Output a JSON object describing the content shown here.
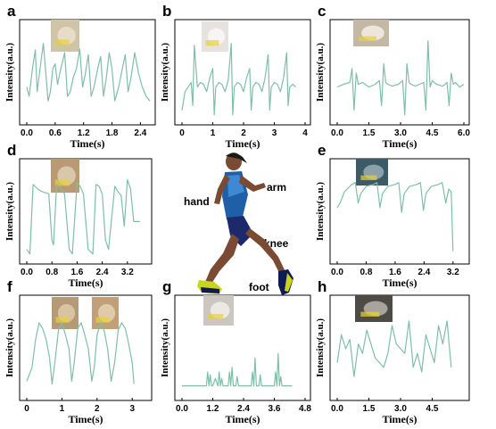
{
  "chart_data": [
    {
      "panel": "a",
      "type": "line",
      "xlabel": "Time(s)",
      "ylabel": "Intensity(a.u.)",
      "xticks": [
        "0.0",
        "0.6",
        "1.2",
        "1.8",
        "2.4"
      ],
      "xlim": [
        0,
        2.6
      ],
      "ylim": [
        0,
        1
      ],
      "series": [
        {
          "color": "#7fbfa8",
          "x": [
            0,
            0.05,
            0.12,
            0.18,
            0.22,
            0.28,
            0.35,
            0.45,
            0.5,
            0.55,
            0.6,
            0.65,
            0.72,
            0.8,
            0.86,
            0.92,
            0.98,
            1.05,
            1.12,
            1.18,
            1.24,
            1.3,
            1.36,
            1.42,
            1.5,
            1.56,
            1.62,
            1.68,
            1.74,
            1.8,
            1.86,
            1.94,
            2.02,
            2.08,
            2.14,
            2.2,
            2.28,
            2.36,
            2.44,
            2.52,
            2.6
          ],
          "y": [
            0.35,
            0.25,
            0.55,
            0.75,
            0.3,
            0.55,
            0.82,
            0.2,
            0.3,
            0.55,
            0.6,
            0.38,
            0.55,
            0.72,
            0.25,
            0.3,
            0.45,
            0.55,
            0.76,
            0.35,
            0.5,
            0.7,
            0.25,
            0.35,
            0.55,
            0.68,
            0.25,
            0.45,
            0.72,
            0.55,
            0.2,
            0.35,
            0.55,
            0.7,
            0.3,
            0.45,
            0.72,
            0.5,
            0.35,
            0.25,
            0.2
          ]
        }
      ]
    },
    {
      "panel": "b",
      "type": "line",
      "xlabel": "Time(s)",
      "ylabel": "Intensity(a.u.)",
      "xticks": [
        "0",
        "1",
        "2",
        "3",
        "4"
      ],
      "xlim": [
        0,
        4
      ],
      "ylim": [
        0,
        1
      ],
      "series": [
        {
          "color": "#7fbfa8",
          "x": [
            0,
            0.1,
            0.2,
            0.3,
            0.35,
            0.4,
            0.5,
            0.6,
            0.7,
            0.8,
            0.9,
            1.0,
            1.05,
            1.1,
            1.2,
            1.3,
            1.4,
            1.5,
            1.6,
            1.65,
            1.7,
            1.8,
            1.9,
            2.0,
            2.1,
            2.2,
            2.25,
            2.3,
            2.4,
            2.5,
            2.6,
            2.7,
            2.8,
            2.85,
            2.9,
            3.0,
            3.1,
            3.2,
            3.3,
            3.4,
            3.45,
            3.5,
            3.6,
            3.7
          ],
          "y": [
            0.1,
            0.3,
            0.35,
            0.4,
            0.15,
            0.8,
            0.35,
            0.4,
            0.38,
            0.3,
            0.45,
            0.55,
            0.05,
            0.35,
            0.4,
            0.38,
            0.3,
            0.42,
            0.82,
            0.05,
            0.35,
            0.4,
            0.38,
            0.3,
            0.45,
            0.55,
            0.1,
            0.35,
            0.4,
            0.38,
            0.3,
            0.45,
            0.7,
            0.1,
            0.35,
            0.4,
            0.38,
            0.3,
            0.45,
            0.72,
            0.15,
            0.35,
            0.38,
            0.35
          ]
        }
      ]
    },
    {
      "panel": "c",
      "type": "line",
      "xlabel": "Time(s)",
      "ylabel": "Intensity(a.u.)",
      "xticks": [
        "0.0",
        "1.5",
        "3.0",
        "4.5",
        "6.0"
      ],
      "xlim": [
        0,
        6
      ],
      "ylim": [
        0,
        1
      ],
      "series": [
        {
          "color": "#7fbfa8",
          "x": [
            0,
            0.3,
            0.6,
            0.7,
            0.8,
            0.9,
            1.0,
            1.2,
            1.5,
            1.8,
            2.0,
            2.1,
            2.2,
            2.3,
            2.4,
            2.6,
            2.9,
            3.1,
            3.2,
            3.3,
            3.4,
            3.5,
            3.7,
            3.9,
            4.1,
            4.2,
            4.3,
            4.4,
            4.5,
            4.7,
            5.0,
            5.2,
            5.3,
            5.4,
            5.5,
            5.6,
            5.8,
            6.0
          ],
          "y": [
            0.35,
            0.38,
            0.4,
            0.55,
            0.1,
            0.5,
            0.38,
            0.4,
            0.35,
            0.38,
            0.42,
            0.15,
            0.6,
            0.4,
            0.38,
            0.36,
            0.38,
            0.42,
            0.05,
            0.6,
            0.4,
            0.38,
            0.36,
            0.38,
            0.4,
            0.1,
            0.85,
            0.35,
            0.42,
            0.38,
            0.36,
            0.4,
            0.15,
            0.5,
            0.38,
            0.4,
            0.35,
            0.38
          ]
        }
      ]
    },
    {
      "panel": "d",
      "type": "line",
      "xlabel": "Time(s)",
      "ylabel": "Intensity(a.u.)",
      "xticks": [
        "0.0",
        "0.8",
        "1.6",
        "2.4",
        "3.2"
      ],
      "xlim": [
        0,
        3.8
      ],
      "ylim": [
        0,
        1
      ],
      "series": [
        {
          "color": "#7fbfa8",
          "x": [
            0,
            0.1,
            0.2,
            0.35,
            0.5,
            0.7,
            0.8,
            0.85,
            0.95,
            1.1,
            1.2,
            1.35,
            1.45,
            1.6,
            1.7,
            1.8,
            1.95,
            2.1,
            2.2,
            2.3,
            2.4,
            2.5,
            2.6,
            2.8,
            2.9,
            3.0,
            3.1,
            3.2,
            3.3,
            3.4,
            3.5,
            3.6
          ],
          "y": [
            0.1,
            0.05,
            0.8,
            0.75,
            0.72,
            0.7,
            0.2,
            0.15,
            0.8,
            0.75,
            0.7,
            0.1,
            0.05,
            0.82,
            0.78,
            0.7,
            0.1,
            0.05,
            0.8,
            0.78,
            0.7,
            0.2,
            0.1,
            0.78,
            0.72,
            0.68,
            0.35,
            0.85,
            0.75,
            0.4,
            0.4,
            0.4
          ]
        }
      ]
    },
    {
      "panel": "e",
      "type": "line",
      "xlabel": "Time(s)",
      "ylabel": "Intensity(a.u.)",
      "xticks": [
        "0.0",
        "0.8",
        "1.6",
        "2.4",
        "3.2"
      ],
      "xlim": [
        0,
        3.5
      ],
      "ylim": [
        0,
        1
      ],
      "series": [
        {
          "color": "#7fbfa8",
          "x": [
            0,
            0.08,
            0.2,
            0.4,
            0.5,
            0.58,
            0.65,
            0.8,
            1.0,
            1.1,
            1.18,
            1.25,
            1.4,
            1.6,
            1.7,
            1.78,
            1.85,
            2.0,
            2.2,
            2.3,
            2.38,
            2.45,
            2.6,
            2.8,
            2.9,
            3.0,
            3.08,
            3.15,
            3.2
          ],
          "y": [
            0.55,
            0.6,
            0.72,
            0.8,
            0.82,
            0.6,
            0.7,
            0.78,
            0.8,
            0.82,
            0.55,
            0.7,
            0.78,
            0.8,
            0.82,
            0.5,
            0.7,
            0.78,
            0.8,
            0.82,
            0.52,
            0.7,
            0.78,
            0.8,
            0.82,
            0.6,
            0.75,
            0.72,
            0.08
          ]
        }
      ]
    },
    {
      "panel": "f",
      "type": "line",
      "xlabel": "Time(s)",
      "ylabel": "Intensity(a.u.)",
      "xticks": [
        "0",
        "1",
        "2",
        "3"
      ],
      "xlim": [
        0,
        3.4
      ],
      "ylim": [
        0,
        1
      ],
      "series": [
        {
          "color": "#7fbfa8",
          "x": [
            0,
            0.15,
            0.25,
            0.35,
            0.45,
            0.55,
            0.65,
            0.72,
            0.8,
            0.9,
            1.0,
            1.1,
            1.2,
            1.28,
            1.35,
            1.45,
            1.55,
            1.65,
            1.75,
            1.85,
            1.92,
            2.0,
            2.1,
            2.2,
            2.3,
            2.4,
            2.5,
            2.6,
            2.7,
            2.8,
            2.9,
            3.0,
            3.05
          ],
          "y": [
            0.15,
            0.3,
            0.6,
            0.78,
            0.72,
            0.6,
            0.4,
            0.12,
            0.35,
            0.7,
            0.78,
            0.65,
            0.5,
            0.15,
            0.35,
            0.72,
            0.78,
            0.65,
            0.5,
            0.15,
            0.3,
            0.65,
            0.78,
            0.7,
            0.5,
            0.15,
            0.35,
            0.7,
            0.78,
            0.72,
            0.55,
            0.35,
            0.12
          ]
        }
      ]
    },
    {
      "panel": "g",
      "type": "line",
      "xlabel": "Time(s)",
      "ylabel": "Intensity(a.u.)",
      "xticks": [
        "0.0",
        "1.2",
        "2.4",
        "3.6",
        "4.8"
      ],
      "xlim": [
        0,
        4.8
      ],
      "ylim": [
        0,
        1
      ],
      "series": [
        {
          "color": "#7fbfa8",
          "x": [
            0,
            0.8,
            0.95,
            1.0,
            1.05,
            1.1,
            1.15,
            1.2,
            1.3,
            1.4,
            1.45,
            1.5,
            1.55,
            1.6,
            1.8,
            1.85,
            1.9,
            1.95,
            2.0,
            2.1,
            2.15,
            2.2,
            2.3,
            2.7,
            2.75,
            2.8,
            2.85,
            2.9,
            3.0,
            3.05,
            3.1,
            3.15,
            3.5,
            3.6,
            3.65,
            3.7,
            3.75,
            3.8,
            3.85,
            3.9,
            4.0,
            4.3
          ],
          "y": [
            0.1,
            0.1,
            0.1,
            0.25,
            0.1,
            0.22,
            0.1,
            0.1,
            0.18,
            0.1,
            0.25,
            0.1,
            0.18,
            0.1,
            0.1,
            0.25,
            0.1,
            0.3,
            0.1,
            0.1,
            0.2,
            0.1,
            0.1,
            0.1,
            0.25,
            0.1,
            0.4,
            0.1,
            0.1,
            0.22,
            0.1,
            0.1,
            0.1,
            0.1,
            0.25,
            0.1,
            0.45,
            0.1,
            0.2,
            0.1,
            0.1,
            0.1
          ]
        }
      ]
    },
    {
      "panel": "h",
      "type": "line",
      "xlabel": "Time(s)",
      "ylabel": "Intensity(a.u.)",
      "xticks": [
        "0.0",
        "1.5",
        "3.0",
        "4.5"
      ],
      "xlim": [
        0,
        6
      ],
      "ylim": [
        0,
        1
      ],
      "series": [
        {
          "color": "#7fbfa8",
          "x": [
            0,
            0.2,
            0.4,
            0.6,
            0.8,
            1.0,
            1.2,
            1.4,
            1.6,
            1.8,
            2.0,
            2.2,
            2.4,
            2.6,
            2.8,
            3.0,
            3.2,
            3.4,
            3.6,
            3.8,
            4.0,
            4.2,
            4.4,
            4.6,
            4.8,
            5.0,
            5.2,
            5.4
          ],
          "y": [
            0.35,
            0.65,
            0.5,
            0.6,
            0.2,
            0.55,
            0.45,
            0.7,
            0.55,
            0.4,
            0.35,
            0.3,
            0.45,
            0.75,
            0.55,
            0.5,
            0.45,
            0.8,
            0.3,
            0.45,
            0.25,
            0.65,
            0.5,
            0.35,
            0.75,
            0.55,
            0.8,
            0.3
          ]
        }
      ]
    }
  ],
  "labels": {
    "hand": "hand",
    "arm": "arm",
    "knee": "knee",
    "foot": "foot"
  }
}
